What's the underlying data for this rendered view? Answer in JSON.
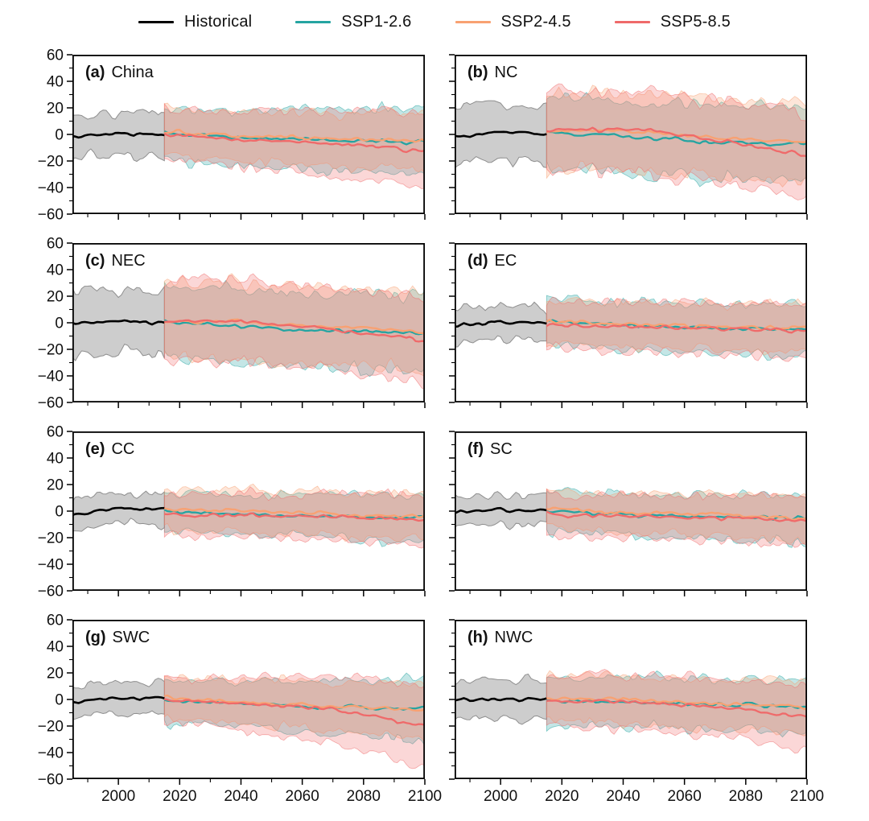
{
  "legend": {
    "items": [
      {
        "label": "Historical",
        "color": "#000000"
      },
      {
        "label": "SSP1-2.6",
        "color": "#25a4a1"
      },
      {
        "label": "SSP2-4.5",
        "color": "#f8a172"
      },
      {
        "label": "SSP5-8.5",
        "color": "#ef6a6a"
      }
    ]
  },
  "chart_data": {
    "type": "line",
    "xlim": [
      1985,
      2100
    ],
    "ylim": [
      -60,
      60
    ],
    "grid": false,
    "legend_position": "top-center",
    "x_tick_values": [
      2000,
      2020,
      2040,
      2060,
      2080,
      2100
    ],
    "x_tick_labels": [
      "2000",
      "2020",
      "2040",
      "2060",
      "2080",
      "2100"
    ],
    "y_tick_values": [
      60,
      40,
      20,
      0,
      -20,
      -40,
      -60
    ],
    "y_tick_labels": [
      "60",
      "40",
      "20",
      "0",
      "−20",
      "−40",
      "−60"
    ],
    "historical_period": [
      1985,
      2015
    ],
    "scenario_period": [
      2015,
      2100
    ],
    "historical_band_fill": "#ababab",
    "historical_band_stroke": "#8f8f8f",
    "historical_line_color": "#000000",
    "series_colors": {
      "ssp126": "#25a4a1",
      "ssp245": "#f8a172",
      "ssp585": "#ef6a6a"
    },
    "panels": [
      {
        "id": "a",
        "label": "(a)",
        "region": "China",
        "historical": {
          "mean_anchors": [
            [
              1985,
              -2
            ],
            [
              2000,
              1
            ],
            [
              2015,
              0
            ]
          ],
          "band_halfwidth": 16
        },
        "scenarios": [
          {
            "name": "SSP1-2.6",
            "key": "ssp126",
            "mean_anchors": [
              [
                2015,
                1
              ],
              [
                2040,
                -3
              ],
              [
                2070,
                -4
              ],
              [
                2100,
                -6
              ]
            ],
            "band_halfwidth": [
              19,
              25
            ]
          },
          {
            "name": "SSP2-4.5",
            "key": "ssp245",
            "mean_anchors": [
              [
                2015,
                2
              ],
              [
                2040,
                -1
              ],
              [
                2070,
                -3
              ],
              [
                2100,
                -5
              ]
            ],
            "band_halfwidth": [
              17,
              22
            ]
          },
          {
            "name": "SSP5-8.5",
            "key": "ssp585",
            "mean_anchors": [
              [
                2015,
                0
              ],
              [
                2040,
                -4
              ],
              [
                2070,
                -7
              ],
              [
                2100,
                -12
              ]
            ],
            "band_halfwidth": [
              18,
              28
            ]
          }
        ]
      },
      {
        "id": "b",
        "label": "(b)",
        "region": "NC",
        "historical": {
          "mean_anchors": [
            [
              1985,
              -2
            ],
            [
              2000,
              2
            ],
            [
              2015,
              0
            ]
          ],
          "band_halfwidth": 21
        },
        "scenarios": [
          {
            "name": "SSP1-2.6",
            "key": "ssp126",
            "mean_anchors": [
              [
                2015,
                2
              ],
              [
                2040,
                -2
              ],
              [
                2070,
                -6
              ],
              [
                2100,
                -7
              ]
            ],
            "band_halfwidth": [
              27,
              28
            ]
          },
          {
            "name": "SSP2-4.5",
            "key": "ssp245",
            "mean_anchors": [
              [
                2015,
                3
              ],
              [
                2040,
                3
              ],
              [
                2070,
                -2
              ],
              [
                2100,
                -6
              ]
            ],
            "band_halfwidth": [
              28,
              30
            ]
          },
          {
            "name": "SSP5-8.5",
            "key": "ssp585",
            "mean_anchors": [
              [
                2015,
                3
              ],
              [
                2045,
                4
              ],
              [
                2070,
                -4
              ],
              [
                2100,
                -15
              ]
            ],
            "band_halfwidth": [
              30,
              32
            ]
          }
        ]
      },
      {
        "id": "c",
        "label": "(c)",
        "region": "NEC",
        "historical": {
          "mean_anchors": [
            [
              1985,
              -1
            ],
            [
              2000,
              1
            ],
            [
              2015,
              0
            ]
          ],
          "band_halfwidth": 24
        },
        "scenarios": [
          {
            "name": "SSP1-2.6",
            "key": "ssp126",
            "mean_anchors": [
              [
                2015,
                1
              ],
              [
                2040,
                -3
              ],
              [
                2070,
                -6
              ],
              [
                2100,
                -8
              ]
            ],
            "band_halfwidth": [
              26,
              30
            ]
          },
          {
            "name": "SSP2-4.5",
            "key": "ssp245",
            "mean_anchors": [
              [
                2015,
                1
              ],
              [
                2040,
                1
              ],
              [
                2070,
                -3
              ],
              [
                2100,
                -7
              ]
            ],
            "band_halfwidth": [
              28,
              30
            ]
          },
          {
            "name": "SSP5-8.5",
            "key": "ssp585",
            "mean_anchors": [
              [
                2015,
                1
              ],
              [
                2040,
                1
              ],
              [
                2070,
                -5
              ],
              [
                2100,
                -13
              ]
            ],
            "band_halfwidth": [
              30,
              33
            ]
          }
        ]
      },
      {
        "id": "d",
        "label": "(d)",
        "region": "EC",
        "historical": {
          "mean_anchors": [
            [
              1985,
              -2
            ],
            [
              2000,
              1
            ],
            [
              2015,
              0
            ]
          ],
          "band_halfwidth": 13
        },
        "scenarios": [
          {
            "name": "SSP1-2.6",
            "key": "ssp126",
            "mean_anchors": [
              [
                2015,
                1
              ],
              [
                2040,
                -2
              ],
              [
                2070,
                -4
              ],
              [
                2100,
                -5
              ]
            ],
            "band_halfwidth": [
              17,
              19
            ]
          },
          {
            "name": "SSP2-4.5",
            "key": "ssp245",
            "mean_anchors": [
              [
                2015,
                1
              ],
              [
                2040,
                -1
              ],
              [
                2070,
                -3
              ],
              [
                2100,
                -4
              ]
            ],
            "band_halfwidth": [
              16,
              18
            ]
          },
          {
            "name": "SSP5-8.5",
            "key": "ssp585",
            "mean_anchors": [
              [
                2015,
                -2
              ],
              [
                2040,
                -3
              ],
              [
                2070,
                -4
              ],
              [
                2100,
                -6
              ]
            ],
            "band_halfwidth": [
              17,
              21
            ]
          }
        ]
      },
      {
        "id": "e",
        "label": "(e)",
        "region": "CC",
        "historical": {
          "mean_anchors": [
            [
              1985,
              -2
            ],
            [
              2000,
              2
            ],
            [
              2015,
              1
            ]
          ],
          "band_halfwidth": 12
        },
        "scenarios": [
          {
            "name": "SSP1-2.6",
            "key": "ssp126",
            "mean_anchors": [
              [
                2015,
                0
              ],
              [
                2040,
                -2
              ],
              [
                2070,
                -4
              ],
              [
                2100,
                -5
              ]
            ],
            "band_halfwidth": [
              15,
              17
            ]
          },
          {
            "name": "SSP2-4.5",
            "key": "ssp245",
            "mean_anchors": [
              [
                2015,
                1
              ],
              [
                2040,
                0
              ],
              [
                2070,
                -2
              ],
              [
                2100,
                -4
              ]
            ],
            "band_halfwidth": [
              15,
              17
            ]
          },
          {
            "name": "SSP5-8.5",
            "key": "ssp585",
            "mean_anchors": [
              [
                2015,
                -3
              ],
              [
                2040,
                -3
              ],
              [
                2070,
                -4
              ],
              [
                2100,
                -7
              ]
            ],
            "band_halfwidth": [
              15,
              19
            ]
          }
        ]
      },
      {
        "id": "f",
        "label": "(f)",
        "region": "SC",
        "historical": {
          "mean_anchors": [
            [
              1985,
              -1
            ],
            [
              2000,
              1
            ],
            [
              2015,
              0
            ]
          ],
          "band_halfwidth": 11
        },
        "scenarios": [
          {
            "name": "SSP1-2.6",
            "key": "ssp126",
            "mean_anchors": [
              [
                2015,
                0
              ],
              [
                2040,
                -3
              ],
              [
                2070,
                -4
              ],
              [
                2100,
                -5
              ]
            ],
            "band_halfwidth": [
              15,
              18
            ]
          },
          {
            "name": "SSP2-4.5",
            "key": "ssp245",
            "mean_anchors": [
              [
                2015,
                1
              ],
              [
                2040,
                -1
              ],
              [
                2070,
                -3
              ],
              [
                2100,
                -5
              ]
            ],
            "band_halfwidth": [
              14,
              17
            ]
          },
          {
            "name": "SSP5-8.5",
            "key": "ssp585",
            "mean_anchors": [
              [
                2015,
                -2
              ],
              [
                2040,
                -4
              ],
              [
                2070,
                -5
              ],
              [
                2100,
                -7
              ]
            ],
            "band_halfwidth": [
              15,
              19
            ]
          }
        ]
      },
      {
        "id": "g",
        "label": "(g)",
        "region": "SWC",
        "historical": {
          "mean_anchors": [
            [
              1985,
              -2
            ],
            [
              2000,
              1
            ],
            [
              2015,
              1
            ]
          ],
          "band_halfwidth": 12
        },
        "scenarios": [
          {
            "name": "SSP1-2.6",
            "key": "ssp126",
            "mean_anchors": [
              [
                2015,
                0
              ],
              [
                2040,
                -3
              ],
              [
                2070,
                -6
              ],
              [
                2100,
                -7
              ]
            ],
            "band_halfwidth": [
              16,
              22
            ]
          },
          {
            "name": "SSP2-4.5",
            "key": "ssp245",
            "mean_anchors": [
              [
                2015,
                1
              ],
              [
                2040,
                -2
              ],
              [
                2070,
                -5
              ],
              [
                2100,
                -8
              ]
            ],
            "band_halfwidth": [
              15,
              20
            ]
          },
          {
            "name": "SSP5-8.5",
            "key": "ssp585",
            "mean_anchors": [
              [
                2015,
                0
              ],
              [
                2040,
                -3
              ],
              [
                2070,
                -7
              ],
              [
                2100,
                -20
              ]
            ],
            "band_halfwidth": [
              16,
              30
            ]
          }
        ]
      },
      {
        "id": "h",
        "label": "(h)",
        "region": "NWC",
        "historical": {
          "mean_anchors": [
            [
              1985,
              -1
            ],
            [
              2000,
              1
            ],
            [
              2015,
              0
            ]
          ],
          "band_halfwidth": 14
        },
        "scenarios": [
          {
            "name": "SSP1-2.6",
            "key": "ssp126",
            "mean_anchors": [
              [
                2015,
                0
              ],
              [
                2040,
                -2
              ],
              [
                2070,
                -4
              ],
              [
                2100,
                -6
              ]
            ],
            "band_halfwidth": [
              18,
              20
            ]
          },
          {
            "name": "SSP2-4.5",
            "key": "ssp245",
            "mean_anchors": [
              [
                2015,
                1
              ],
              [
                2040,
                0
              ],
              [
                2070,
                -3
              ],
              [
                2100,
                -6
              ]
            ],
            "band_halfwidth": [
              17,
              20
            ]
          },
          {
            "name": "SSP5-8.5",
            "key": "ssp585",
            "mean_anchors": [
              [
                2015,
                -1
              ],
              [
                2040,
                -2
              ],
              [
                2070,
                -5
              ],
              [
                2100,
                -13
              ]
            ],
            "band_halfwidth": [
              18,
              24
            ]
          }
        ]
      }
    ]
  }
}
